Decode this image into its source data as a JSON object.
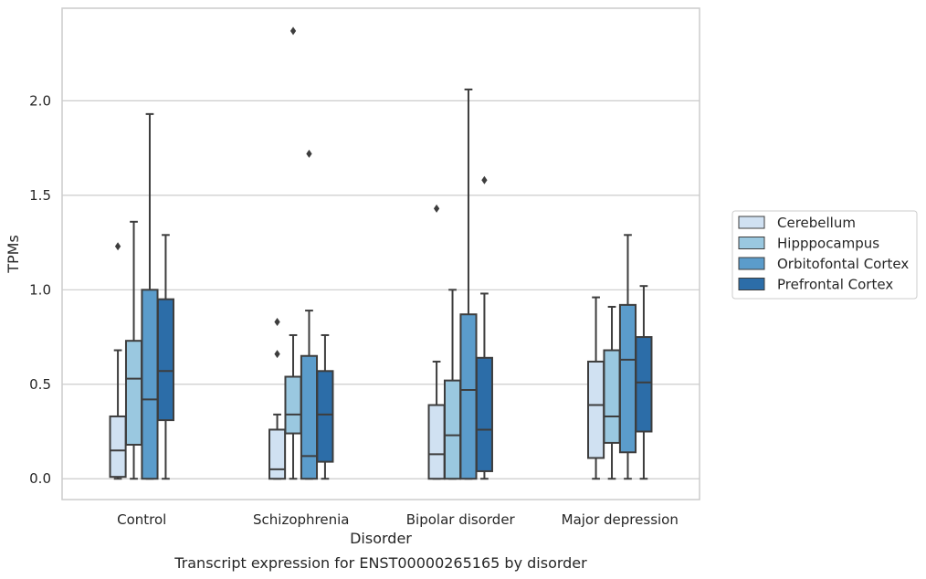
{
  "chart_data": {
    "type": "box",
    "title": "",
    "caption": "Transcript expression for ENST00000265165 by disorder",
    "xlabel": "Disorder",
    "ylabel": "TPMs",
    "ylim": [
      -0.11,
      2.49
    ],
    "yticks": [
      "0.0",
      "0.5",
      "1.0",
      "1.5",
      "2.0"
    ],
    "ytick_values": [
      0.0,
      0.5,
      1.0,
      1.5,
      2.0
    ],
    "grid": "horizontal",
    "legend_position": "right",
    "categories": [
      "Control",
      "Schizophrenia",
      "Bipolar disorder",
      "Major depression"
    ],
    "series": [
      {
        "name": "Cerebellum",
        "color": "#d0e1f2",
        "boxes": [
          {
            "whislo": 0.0,
            "q1": 0.01,
            "med": 0.15,
            "q3": 0.33,
            "whishi": 0.68,
            "fliers": [
              1.23
            ]
          },
          {
            "whislo": 0.0,
            "q1": 0.0,
            "med": 0.05,
            "q3": 0.26,
            "whishi": 0.34,
            "fliers": [
              0.66,
              0.83
            ]
          },
          {
            "whislo": 0.0,
            "q1": 0.0,
            "med": 0.13,
            "q3": 0.39,
            "whishi": 0.62,
            "fliers": [
              1.43
            ]
          },
          {
            "whislo": 0.0,
            "q1": 0.11,
            "med": 0.39,
            "q3": 0.62,
            "whishi": 0.96,
            "fliers": []
          }
        ]
      },
      {
        "name": "Hipppocampus",
        "color": "#9ac8e0",
        "boxes": [
          {
            "whislo": 0.0,
            "q1": 0.18,
            "med": 0.53,
            "q3": 0.73,
            "whishi": 1.36,
            "fliers": []
          },
          {
            "whislo": 0.0,
            "q1": 0.24,
            "med": 0.34,
            "q3": 0.54,
            "whishi": 0.76,
            "fliers": [
              2.37
            ]
          },
          {
            "whislo": 0.0,
            "q1": 0.0,
            "med": 0.23,
            "q3": 0.52,
            "whishi": 1.0,
            "fliers": []
          },
          {
            "whislo": 0.0,
            "q1": 0.19,
            "med": 0.33,
            "q3": 0.68,
            "whishi": 0.91,
            "fliers": []
          }
        ]
      },
      {
        "name": "Orbitofontal Cortex",
        "color": "#5b9ccb",
        "boxes": [
          {
            "whislo": 0.0,
            "q1": 0.0,
            "med": 0.42,
            "q3": 1.0,
            "whishi": 1.93,
            "fliers": []
          },
          {
            "whislo": 0.0,
            "q1": 0.0,
            "med": 0.12,
            "q3": 0.65,
            "whishi": 0.89,
            "fliers": [
              1.72
            ]
          },
          {
            "whislo": 0.0,
            "q1": 0.0,
            "med": 0.47,
            "q3": 0.87,
            "whishi": 2.06,
            "fliers": []
          },
          {
            "whislo": 0.0,
            "q1": 0.14,
            "med": 0.63,
            "q3": 0.92,
            "whishi": 1.29,
            "fliers": []
          }
        ]
      },
      {
        "name": "Prefrontal Cortex",
        "color": "#2c6da8",
        "boxes": [
          {
            "whislo": 0.0,
            "q1": 0.31,
            "med": 0.57,
            "q3": 0.95,
            "whishi": 1.29,
            "fliers": []
          },
          {
            "whislo": 0.0,
            "q1": 0.09,
            "med": 0.34,
            "q3": 0.57,
            "whishi": 0.76,
            "fliers": []
          },
          {
            "whislo": 0.0,
            "q1": 0.04,
            "med": 0.26,
            "q3": 0.64,
            "whishi": 0.98,
            "fliers": [
              1.58
            ]
          },
          {
            "whislo": 0.0,
            "q1": 0.25,
            "med": 0.51,
            "q3": 0.75,
            "whishi": 1.02,
            "fliers": []
          }
        ]
      }
    ]
  }
}
